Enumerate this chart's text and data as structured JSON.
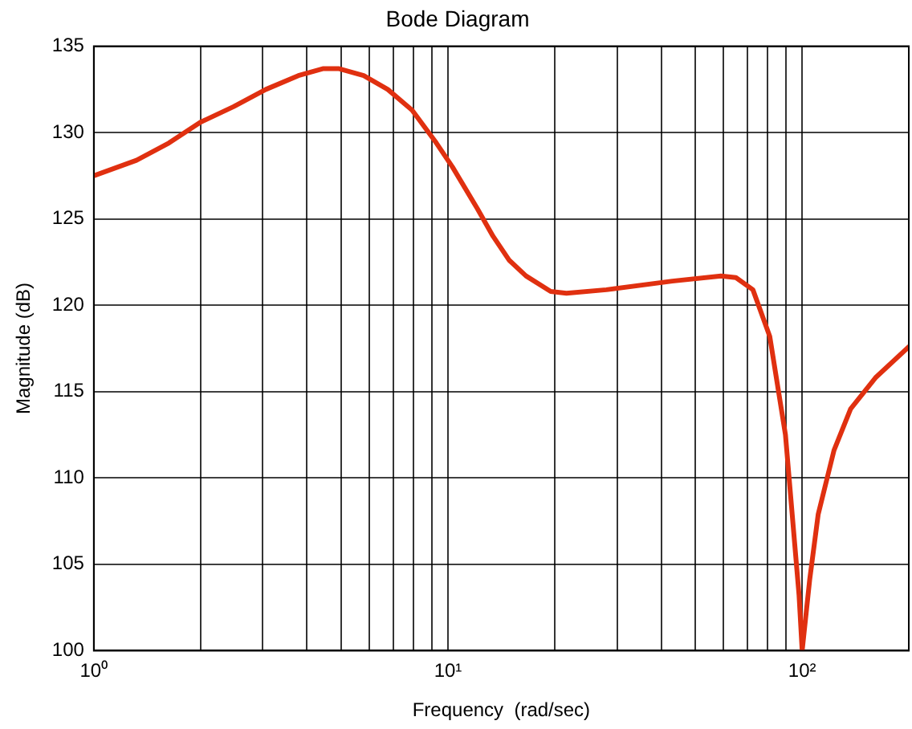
{
  "chart_data": {
    "type": "line",
    "title": "Bode Diagram",
    "xlabel": "Frequency  (rad/sec)",
    "ylabel": "Magnitude (dB)",
    "log": "x",
    "grid": true,
    "line_style": "solid",
    "marker": "none",
    "legend": false,
    "xlim": [
      1,
      200
    ],
    "ylim": [
      100,
      135
    ],
    "xticks": [
      {
        "value": 1,
        "label": "10⁰"
      },
      {
        "value": 2,
        "label": null
      },
      {
        "value": 3,
        "label": null
      },
      {
        "value": 4,
        "label": null
      },
      {
        "value": 5,
        "label": null
      },
      {
        "value": 6,
        "label": null
      },
      {
        "value": 7,
        "label": null
      },
      {
        "value": 8,
        "label": null
      },
      {
        "value": 9,
        "label": null
      },
      {
        "value": 10,
        "label": "10¹"
      },
      {
        "value": 20,
        "label": null
      },
      {
        "value": 30,
        "label": null
      },
      {
        "value": 40,
        "label": null
      },
      {
        "value": 50,
        "label": null
      },
      {
        "value": 60,
        "label": null
      },
      {
        "value": 70,
        "label": null
      },
      {
        "value": 80,
        "label": null
      },
      {
        "value": 90,
        "label": null
      },
      {
        "value": 100,
        "label": "10²"
      }
    ],
    "yticks": [
      100,
      105,
      110,
      115,
      120,
      125,
      130,
      135
    ],
    "series": [
      {
        "color": "#e03010",
        "x": [
          1,
          1.32,
          1.63,
          2,
          2.48,
          3.06,
          3.78,
          4.43,
          4.93,
          5.78,
          6.76,
          7.92,
          9.27,
          10.3,
          12.1,
          13.4,
          14.9,
          16.6,
          19.5,
          21.6,
          28,
          43,
          59,
          65,
          72.6,
          81,
          89.7,
          98,
          100,
          105,
          111,
          123,
          137,
          161,
          200
        ],
        "values": [
          127.5,
          128.4,
          129.4,
          130.6,
          131.5,
          132.5,
          133.3,
          133.7,
          133.7,
          133.3,
          132.5,
          131.3,
          129.4,
          128,
          125.6,
          124,
          122.6,
          121.7,
          120.8,
          120.7,
          120.9,
          121.4,
          121.7,
          121.6,
          120.9,
          118.2,
          112.5,
          103.2,
          100,
          104.1,
          107.9,
          111.6,
          114,
          115.8,
          117.6
        ]
      }
    ]
  }
}
